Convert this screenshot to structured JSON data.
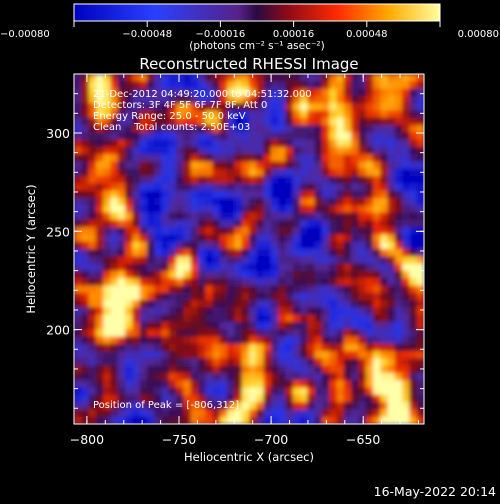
{
  "chart_data": {
    "type": "heatmap",
    "title": "Reconstructed RHESSI Image",
    "xlabel": "Heliocentric X (arcsec)",
    "ylabel": "Heliocentric Y (arcsec)",
    "x_ticks": [
      -800,
      -750,
      -700,
      -650
    ],
    "y_ticks": [
      200,
      250,
      300
    ],
    "x_tick_labels": [
      "−800",
      "−750",
      "−700",
      "−650"
    ],
    "y_tick_labels": [
      "200",
      "250",
      "300"
    ],
    "xlim": [
      -807,
      -617
    ],
    "ylim": [
      152,
      330
    ],
    "colorbar": {
      "ticks": [
        -0.0008,
        -0.00048,
        -0.00016,
        0.00016,
        0.00048,
        0.0008
      ],
      "tick_labels": [
        "−0.00080",
        "−0.00048",
        "−0.00016",
        "0.00016",
        "0.00048",
        "0.00080"
      ],
      "unit_label": "(photons cm⁻² s⁻¹ asec⁻²)",
      "range": [
        -0.0008,
        0.0008
      ]
    },
    "annotations": [
      "21-Dec-2012 04:49:20.000 to 04:51:32.000",
      "Detectors: 3F 4F 5F 6F 7F 8F, Att 0",
      "Energy Range: 25.0 - 50.0 keV",
      "Clean    Total counts: 2.50E+03"
    ],
    "peak_label": "Position of Peak = [-806,312]",
    "peak": [
      -806,
      312
    ],
    "timestamp": "16-May-2022 20:14",
    "colors": {
      "background": "#000000",
      "text": "#ffffff"
    }
  }
}
